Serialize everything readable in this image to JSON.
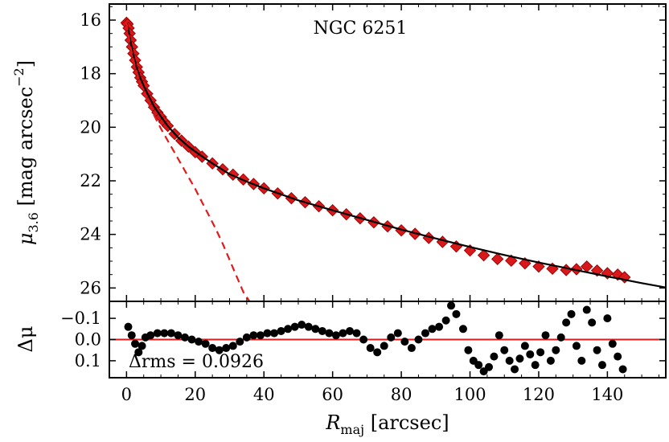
{
  "chart_data": [
    {
      "type": "scatter",
      "panel": "profile",
      "title": "NGC 6251",
      "xlabel": "R_maj [arcsec]",
      "ylabel": "μ_3.6 [mag arcsec^-2]",
      "xlim": [
        -5,
        157
      ],
      "ylim": [
        26.5,
        15.4
      ],
      "y_inverted": true,
      "x_ticks": [
        0,
        20,
        40,
        60,
        80,
        100,
        120,
        140
      ],
      "y_ticks": [
        16,
        18,
        20,
        22,
        24,
        26
      ],
      "y_tick_labels": [
        "16",
        "18",
        "20",
        "22",
        "24",
        "26"
      ],
      "series": [
        {
          "name": "observed profile",
          "style": "red diamonds",
          "color": "#d7191c",
          "x": [
            0.0,
            0.3,
            0.6,
            0.9,
            1.2,
            1.6,
            2.0,
            2.5,
            3.0,
            3.5,
            4.0,
            4.5,
            5.0,
            6.0,
            7.0,
            8.0,
            9.0,
            10.0,
            11.0,
            12.0,
            14.0,
            16.0,
            18.0,
            20.0,
            22.0,
            25.0,
            28.0,
            31.0,
            34.0,
            37.0,
            40.0,
            44.0,
            48.0,
            52.0,
            56.0,
            60.0,
            64.0,
            68.0,
            72.0,
            76.0,
            80.0,
            84.0,
            88.0,
            92.0,
            96.0,
            100.0,
            104.0,
            108.0,
            112.0,
            116.0,
            120.0,
            124.0,
            128.0,
            131.0,
            134.0,
            137.0,
            140.0,
            143.0,
            145.0
          ],
          "y": [
            16.1,
            16.15,
            16.3,
            16.5,
            16.75,
            17.0,
            17.25,
            17.5,
            17.75,
            17.95,
            18.15,
            18.3,
            18.45,
            18.75,
            19.0,
            19.25,
            19.45,
            19.62,
            19.8,
            19.95,
            20.25,
            20.5,
            20.72,
            20.93,
            21.1,
            21.35,
            21.57,
            21.77,
            21.95,
            22.12,
            22.28,
            22.47,
            22.65,
            22.8,
            22.95,
            23.1,
            23.25,
            23.4,
            23.55,
            23.7,
            23.85,
            23.98,
            24.13,
            24.28,
            24.45,
            24.6,
            24.78,
            24.92,
            24.98,
            25.08,
            25.2,
            25.28,
            25.33,
            25.3,
            25.2,
            25.35,
            25.45,
            25.5,
            25.6
          ]
        },
        {
          "name": "total model",
          "style": "black solid line",
          "color": "#000000",
          "x": [
            0.0,
            0.5,
            1.0,
            2.0,
            3.0,
            4.0,
            5.0,
            6.0,
            8.0,
            10.0,
            12.0,
            15.0,
            18.0,
            21.0,
            25.0,
            30.0,
            35.0,
            40.0,
            50.0,
            60.0,
            70.0,
            80.0,
            90.0,
            100.0,
            110.0,
            120.0,
            130.0,
            140.0,
            150.0,
            157.0
          ],
          "y": [
            16.1,
            16.3,
            16.7,
            17.3,
            17.8,
            18.15,
            18.45,
            18.72,
            19.22,
            19.6,
            19.95,
            20.38,
            20.72,
            21.0,
            21.35,
            21.75,
            22.03,
            22.28,
            22.73,
            23.1,
            23.46,
            23.82,
            24.15,
            24.47,
            24.77,
            25.05,
            25.31,
            25.57,
            25.82,
            25.98
          ]
        },
        {
          "name": "bulge component",
          "style": "red dashed line",
          "color": "#e31a1c",
          "x": [
            0.0,
            1.0,
            2.0,
            3.0,
            4.0,
            6.0,
            8.0,
            10.0,
            12.0,
            14.0,
            16.0,
            18.0,
            20.0,
            22.0,
            24.0,
            26.0,
            28.0,
            30.0,
            32.0,
            34.0,
            35.8
          ],
          "y": [
            16.1,
            16.9,
            17.5,
            17.95,
            18.35,
            19.0,
            19.55,
            20.05,
            20.5,
            20.95,
            21.4,
            21.85,
            22.3,
            22.8,
            23.3,
            23.8,
            24.35,
            24.95,
            25.55,
            26.15,
            26.5
          ]
        }
      ]
    },
    {
      "type": "scatter",
      "panel": "residuals",
      "xlabel": "R_maj [arcsec]",
      "ylabel": "Δμ",
      "xlim": [
        -5,
        157
      ],
      "ylim": [
        0.18,
        -0.18
      ],
      "y_inverted": true,
      "x_ticks": [
        0,
        20,
        40,
        60,
        80,
        100,
        120,
        140
      ],
      "x_tick_labels": [
        "0",
        "20",
        "40",
        "60",
        "80",
        "100",
        "120",
        "140"
      ],
      "y_ticks": [
        -0.1,
        0.0,
        0.1
      ],
      "y_tick_labels": [
        "−0.1",
        "0.0",
        "0.1"
      ],
      "reference_line": {
        "y": 0.0,
        "color": "#e31a1c"
      },
      "annotation": "Δrms = 0.0926",
      "series": [
        {
          "name": "residuals",
          "style": "black dots",
          "color": "#000000",
          "x": [
            0.5,
            1.5,
            2.5,
            3.5,
            4.5,
            5.5,
            7.0,
            9.0,
            11.0,
            13.0,
            15.0,
            17.0,
            19.0,
            21.0,
            23.0,
            25.0,
            27.0,
            29.0,
            31.0,
            33.0,
            35.0,
            37.0,
            39.0,
            41.0,
            43.0,
            45.0,
            47.0,
            49.0,
            51.0,
            53.0,
            55.0,
            57.0,
            59.0,
            61.0,
            63.0,
            65.0,
            67.0,
            69.0,
            71.0,
            73.0,
            75.0,
            77.0,
            79.0,
            81.0,
            83.0,
            85.0,
            87.0,
            89.0,
            91.0,
            93.0,
            94.5,
            96.0,
            98.0,
            99.5,
            101.0,
            102.5,
            104.0,
            105.5,
            107.0,
            108.5,
            110.0,
            111.5,
            113.0,
            114.5,
            116.0,
            117.5,
            119.0,
            120.5,
            122.0,
            123.5,
            125.0,
            126.5,
            128.0,
            129.5,
            131.0,
            132.5,
            134.0,
            135.5,
            137.0,
            138.5,
            140.0,
            141.5,
            143.0,
            144.5
          ],
          "y": [
            -0.06,
            -0.02,
            0.02,
            0.06,
            0.03,
            -0.01,
            -0.02,
            -0.03,
            -0.03,
            -0.03,
            -0.02,
            -0.01,
            0.0,
            0.01,
            0.02,
            0.04,
            0.05,
            0.04,
            0.03,
            0.01,
            -0.01,
            -0.02,
            -0.02,
            -0.03,
            -0.03,
            -0.04,
            -0.05,
            -0.06,
            -0.07,
            -0.06,
            -0.05,
            -0.04,
            -0.03,
            -0.02,
            -0.03,
            -0.04,
            -0.03,
            0.0,
            0.04,
            0.06,
            0.03,
            -0.01,
            -0.03,
            0.01,
            0.04,
            0.0,
            -0.03,
            -0.05,
            -0.06,
            -0.09,
            -0.16,
            -0.12,
            -0.05,
            0.05,
            0.1,
            0.12,
            0.15,
            0.13,
            0.08,
            -0.02,
            0.05,
            0.1,
            0.14,
            0.09,
            0.03,
            0.07,
            0.12,
            0.06,
            -0.02,
            0.1,
            0.05,
            -0.01,
            -0.08,
            -0.12,
            0.03,
            0.1,
            -0.14,
            -0.08,
            0.05,
            0.12,
            -0.1,
            0.02,
            0.08,
            0.14
          ]
        }
      ]
    }
  ]
}
